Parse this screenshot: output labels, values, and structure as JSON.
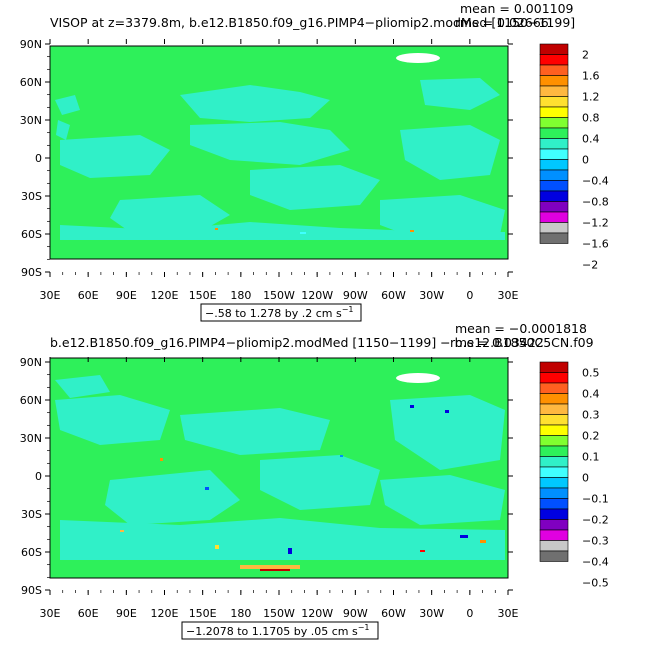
{
  "panels": [
    {
      "title": "VISOP at z=3379.8m, b.e12.B1850.f09_g16.PIMP4−pliomip2.modMed [1150−1199]",
      "mean": "mean = 0.001109",
      "rms": "rms = 0.02666",
      "range_text": "−.58 to 1.278 by .2 cm s",
      "range_sup": "−1",
      "lat_labels": [
        "90N",
        "60N",
        "30N",
        "0",
        "30S",
        "60S",
        "90S"
      ],
      "lon_labels": [
        "30E",
        "60E",
        "90E",
        "120E",
        "150E",
        "180",
        "150W",
        "120W",
        "90W",
        "60W",
        "30W",
        "0",
        "30E"
      ],
      "colorbar_labels": [
        "2",
        "1.6",
        "1.2",
        "0.8",
        "0.4",
        "0",
        "−0.4",
        "−0.8",
        "−1.2",
        "−1.6",
        "−2"
      ]
    },
    {
      "title": "b.e12.B1850.f09_g16.PIMP4−pliomip2.modMed [1150−1199] − b.e12.B1850C5CN.f09",
      "mean": "mean = −0.0001818",
      "rms": "rms = 0.03422",
      "range_text": "−1.2078 to 1.1705 by .05 cm s",
      "range_sup": "−1",
      "lat_labels": [
        "90N",
        "60N",
        "30N",
        "0",
        "30S",
        "60S",
        "90S"
      ],
      "lon_labels": [
        "30E",
        "60E",
        "90E",
        "120E",
        "150E",
        "180",
        "150W",
        "120W",
        "90W",
        "60W",
        "30W",
        "0",
        "30E"
      ],
      "colorbar_labels": [
        "0.5",
        "0.4",
        "0.3",
        "0.2",
        "0.1",
        "0",
        "−0.1",
        "−0.2",
        "−0.3",
        "−0.4",
        "−0.5"
      ]
    }
  ],
  "colors": {
    "ocean_main": "#2ef05a",
    "ocean_near_zero": "#30f0c8",
    "land_missing": "#ffffff",
    "colorbar": [
      "#c00000",
      "#ff0000",
      "#ff6020",
      "#ff9000",
      "#ffb840",
      "#ffe030",
      "#ffff00",
      "#80ff30",
      "#2ef05a",
      "#30f0c8",
      "#40ffff",
      "#00c8ff",
      "#0090ff",
      "#0050ff",
      "#0000e0",
      "#8000c0",
      "#e000e0",
      "#c8c8c8",
      "#707070"
    ]
  }
}
